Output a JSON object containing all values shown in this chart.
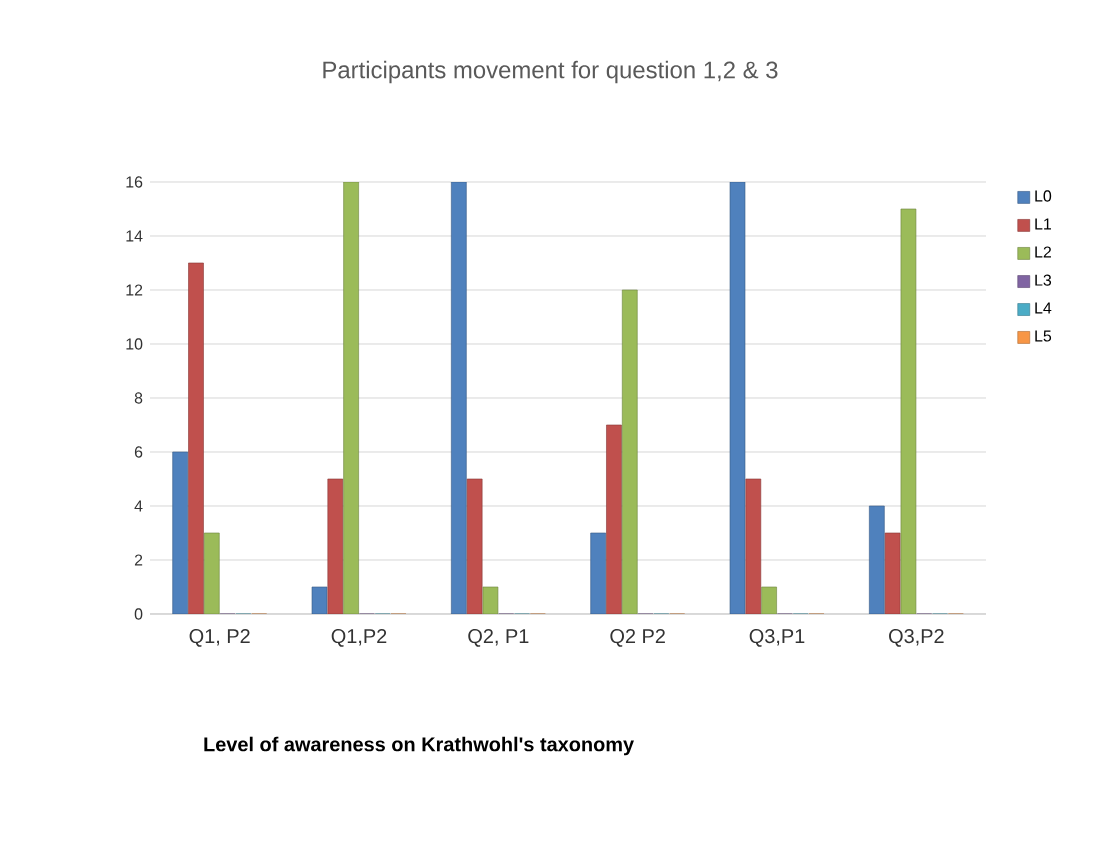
{
  "chart_data": {
    "type": "bar",
    "title": "Participants movement for question 1,2 & 3",
    "xlabel": "Level of awareness on Krathwohl's taxonomy",
    "categories": [
      "Q1, P2",
      "Q1,P2",
      "Q2, P1",
      "Q2 P2",
      "Q3,P1",
      "Q3,P2"
    ],
    "series": [
      {
        "name": "L0",
        "color": "#4f81bd",
        "values": [
          6,
          1,
          16,
          3,
          16,
          4
        ]
      },
      {
        "name": "L1",
        "color": "#c0504d",
        "values": [
          13,
          5,
          5,
          7,
          5,
          3
        ]
      },
      {
        "name": "L2",
        "color": "#9bbb59",
        "values": [
          3,
          16,
          1,
          12,
          1,
          15
        ]
      },
      {
        "name": "L3",
        "color": "#8064a2",
        "values": [
          0,
          0,
          0,
          0,
          0,
          0
        ]
      },
      {
        "name": "L4",
        "color": "#4bacc6",
        "values": [
          0,
          0,
          0,
          0,
          0,
          0
        ]
      },
      {
        "name": "L5",
        "color": "#f79646",
        "values": [
          0,
          0,
          0,
          0,
          0,
          0
        ]
      }
    ],
    "ylim": [
      0,
      16
    ],
    "yticks": [
      0,
      2,
      4,
      6,
      8,
      10,
      12,
      14,
      16
    ],
    "grid": "y",
    "legend": "right"
  }
}
